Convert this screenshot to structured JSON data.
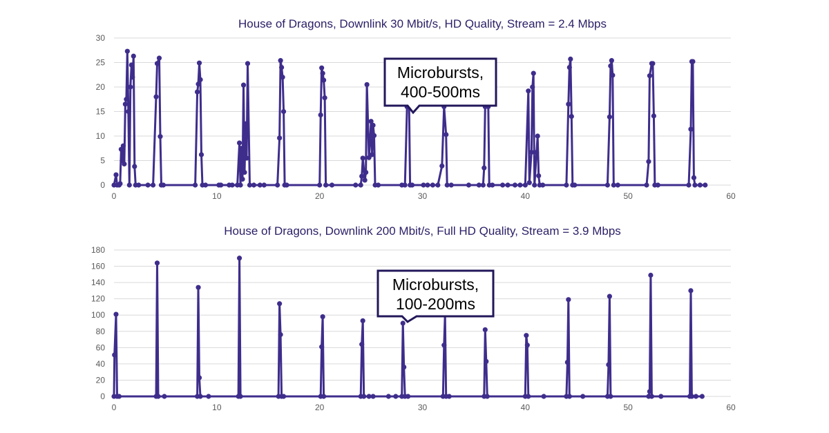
{
  "chart_data": [
    {
      "type": "line",
      "title": "House of Dragons, Downlink 30 Mbit/s, HD Quality, Stream = 2.4 Mbps",
      "xlabel": "",
      "ylabel": "",
      "xlim": [
        0,
        60
      ],
      "ylim": [
        0,
        30
      ],
      "xticks": [
        "0",
        "10",
        "20",
        "30",
        "40",
        "50",
        "60"
      ],
      "yticks": [
        "0",
        "5",
        "10",
        "15",
        "20",
        "25",
        "30"
      ],
      "grid": true,
      "color": "#3f2d8c",
      "annotation": [
        "Microbursts,",
        "400-500ms"
      ],
      "points": [
        [
          0,
          0
        ],
        [
          0.2,
          2.1
        ],
        [
          0.3,
          0
        ],
        [
          0.5,
          0
        ],
        [
          0.6,
          0.3
        ],
        [
          0.7,
          7.3
        ],
        [
          0.8,
          5
        ],
        [
          0.9,
          8
        ],
        [
          1.0,
          4.3
        ],
        [
          1.1,
          16.5
        ],
        [
          1.2,
          17.5
        ],
        [
          1.3,
          27.3
        ],
        [
          1.4,
          15
        ],
        [
          1.5,
          0
        ],
        [
          1.6,
          20
        ],
        [
          1.7,
          24.5
        ],
        [
          1.8,
          22
        ],
        [
          1.9,
          26.3
        ],
        [
          2.0,
          3.8
        ],
        [
          2.1,
          0
        ],
        [
          2.4,
          0
        ],
        [
          3.3,
          0
        ],
        [
          3.8,
          0
        ],
        [
          4.1,
          18
        ],
        [
          4.2,
          24.8
        ],
        [
          4.4,
          25.9
        ],
        [
          4.5,
          9.9
        ],
        [
          4.6,
          0
        ],
        [
          4.8,
          0
        ],
        [
          7.9,
          0
        ],
        [
          8.1,
          19
        ],
        [
          8.2,
          20.6
        ],
        [
          8.3,
          24.9
        ],
        [
          8.4,
          21.5
        ],
        [
          8.5,
          6.2
        ],
        [
          8.6,
          0
        ],
        [
          8.9,
          0
        ],
        [
          10.2,
          0
        ],
        [
          10.4,
          0
        ],
        [
          11.2,
          0
        ],
        [
          11.5,
          0
        ],
        [
          12.0,
          0
        ],
        [
          12.2,
          8.6
        ],
        [
          12.3,
          0
        ],
        [
          12.4,
          7.5
        ],
        [
          12.5,
          1.2
        ],
        [
          12.6,
          20.4
        ],
        [
          12.7,
          2.6
        ],
        [
          12.8,
          12.5
        ],
        [
          12.9,
          5.5
        ],
        [
          13.0,
          24.8
        ],
        [
          13.2,
          0
        ],
        [
          13.6,
          0
        ],
        [
          14.2,
          0
        ],
        [
          14.6,
          0
        ],
        [
          15.9,
          0
        ],
        [
          16.1,
          9.6
        ],
        [
          16.2,
          25.4
        ],
        [
          16.3,
          24
        ],
        [
          16.4,
          22
        ],
        [
          16.5,
          15
        ],
        [
          16.6,
          0
        ],
        [
          16.8,
          0
        ],
        [
          20.0,
          0
        ],
        [
          20.1,
          14.3
        ],
        [
          20.2,
          23.9
        ],
        [
          20.3,
          22.8
        ],
        [
          20.4,
          21.4
        ],
        [
          20.5,
          17.8
        ],
        [
          20.6,
          0
        ],
        [
          21.2,
          0
        ],
        [
          23.5,
          0
        ],
        [
          24.0,
          0
        ],
        [
          24.1,
          1.8
        ],
        [
          24.2,
          5.5
        ],
        [
          24.4,
          1
        ],
        [
          24.5,
          2.6
        ],
        [
          24.6,
          20.5
        ],
        [
          24.8,
          5.6
        ],
        [
          24.9,
          8.8
        ],
        [
          25.0,
          13
        ],
        [
          25.1,
          6.2
        ],
        [
          25.2,
          12.2
        ],
        [
          25.3,
          10.1
        ],
        [
          25.4,
          0
        ],
        [
          25.7,
          0
        ],
        [
          28.0,
          0
        ],
        [
          28.3,
          0
        ],
        [
          28.5,
          16
        ],
        [
          28.7,
          16
        ],
        [
          28.8,
          0
        ],
        [
          29.0,
          0
        ],
        [
          30.1,
          0
        ],
        [
          30.5,
          0
        ],
        [
          31.0,
          0
        ],
        [
          31.5,
          0
        ],
        [
          31.9,
          3.9
        ],
        [
          32.1,
          16
        ],
        [
          32.3,
          10.3
        ],
        [
          32.4,
          0
        ],
        [
          32.8,
          0
        ],
        [
          34.5,
          0
        ],
        [
          35.5,
          0
        ],
        [
          35.9,
          0
        ],
        [
          36.0,
          3.5
        ],
        [
          36.1,
          16
        ],
        [
          36.4,
          16
        ],
        [
          36.5,
          0
        ],
        [
          36.8,
          0
        ],
        [
          37.8,
          0
        ],
        [
          38.3,
          0
        ],
        [
          39.0,
          0
        ],
        [
          39.5,
          0
        ],
        [
          40.0,
          0
        ],
        [
          40.3,
          19.2
        ],
        [
          40.4,
          0.5
        ],
        [
          40.6,
          6.7
        ],
        [
          40.7,
          20
        ],
        [
          40.8,
          22.8
        ],
        [
          40.9,
          0
        ],
        [
          41.1,
          6.7
        ],
        [
          41.2,
          10
        ],
        [
          41.3,
          1.9
        ],
        [
          41.4,
          0
        ],
        [
          41.7,
          0
        ],
        [
          44.0,
          0
        ],
        [
          44.2,
          16.5
        ],
        [
          44.3,
          24
        ],
        [
          44.4,
          25.7
        ],
        [
          44.5,
          14
        ],
        [
          44.6,
          0
        ],
        [
          44.8,
          0
        ],
        [
          48.0,
          0
        ],
        [
          48.2,
          13.9
        ],
        [
          48.3,
          24.3
        ],
        [
          48.4,
          25.4
        ],
        [
          48.5,
          22.4
        ],
        [
          48.6,
          0
        ],
        [
          49.0,
          0
        ],
        [
          51.8,
          0
        ],
        [
          52.0,
          4.8
        ],
        [
          52.1,
          22.3
        ],
        [
          52.3,
          24.8
        ],
        [
          52.4,
          24.8
        ],
        [
          52.5,
          14.1
        ],
        [
          52.6,
          0
        ],
        [
          52.9,
          0
        ],
        [
          55.9,
          0
        ],
        [
          56.1,
          11.4
        ],
        [
          56.2,
          25.2
        ],
        [
          56.3,
          25.2
        ],
        [
          56.4,
          1.5
        ],
        [
          56.5,
          0
        ],
        [
          57.0,
          0
        ],
        [
          57.5,
          0
        ]
      ]
    },
    {
      "type": "line",
      "title": "House of Dragons, Downlink 200 Mbit/s, Full HD Quality, Stream = 3.9 Mbps",
      "xlabel": "",
      "ylabel": "",
      "xlim": [
        0,
        60
      ],
      "ylim": [
        0,
        180
      ],
      "xticks": [
        "0",
        "10",
        "20",
        "30",
        "40",
        "50",
        "60"
      ],
      "yticks": [
        "0",
        "20",
        "40",
        "60",
        "80",
        "100",
        "120",
        "140",
        "160",
        "180"
      ],
      "grid": true,
      "color": "#3f2d8c",
      "annotation": [
        "Microbursts,",
        "100-200ms"
      ],
      "points": [
        [
          0,
          0
        ],
        [
          0.05,
          51
        ],
        [
          0.2,
          101
        ],
        [
          0.3,
          0
        ],
        [
          0.5,
          0
        ],
        [
          4.1,
          0
        ],
        [
          4.2,
          164
        ],
        [
          4.3,
          0
        ],
        [
          4.9,
          0
        ],
        [
          8.1,
          0
        ],
        [
          8.2,
          134
        ],
        [
          8.3,
          23
        ],
        [
          8.4,
          0
        ],
        [
          9.2,
          0
        ],
        [
          12.1,
          0
        ],
        [
          12.2,
          170
        ],
        [
          12.3,
          0
        ],
        [
          16.0,
          0
        ],
        [
          16.1,
          114
        ],
        [
          16.2,
          76
        ],
        [
          16.3,
          0
        ],
        [
          16.5,
          0
        ],
        [
          20.1,
          0
        ],
        [
          20.2,
          61
        ],
        [
          20.3,
          98
        ],
        [
          20.4,
          0
        ],
        [
          24.0,
          0
        ],
        [
          24.1,
          64
        ],
        [
          24.2,
          93
        ],
        [
          24.3,
          0
        ],
        [
          24.8,
          0
        ],
        [
          25.2,
          0
        ],
        [
          26.7,
          0
        ],
        [
          27.4,
          0
        ],
        [
          28.0,
          0
        ],
        [
          28.1,
          90
        ],
        [
          28.2,
          36
        ],
        [
          28.3,
          0
        ],
        [
          28.6,
          0
        ],
        [
          32.0,
          0
        ],
        [
          32.1,
          63
        ],
        [
          32.2,
          100
        ],
        [
          32.3,
          0
        ],
        [
          32.6,
          0
        ],
        [
          36.0,
          0
        ],
        [
          36.1,
          82
        ],
        [
          36.2,
          43
        ],
        [
          36.3,
          0
        ],
        [
          40.0,
          0
        ],
        [
          40.1,
          75
        ],
        [
          40.2,
          63
        ],
        [
          40.3,
          0
        ],
        [
          41.8,
          0
        ],
        [
          44.0,
          0
        ],
        [
          44.1,
          42
        ],
        [
          44.2,
          119
        ],
        [
          44.3,
          0
        ],
        [
          45.6,
          0
        ],
        [
          48.0,
          0
        ],
        [
          48.1,
          39
        ],
        [
          48.2,
          123
        ],
        [
          48.3,
          0
        ],
        [
          52.0,
          0
        ],
        [
          52.1,
          6
        ],
        [
          52.2,
          149
        ],
        [
          52.3,
          0
        ],
        [
          53.2,
          0
        ],
        [
          56.0,
          0
        ],
        [
          56.1,
          130
        ],
        [
          56.2,
          0
        ],
        [
          56.6,
          0
        ],
        [
          57.2,
          0
        ]
      ]
    }
  ]
}
